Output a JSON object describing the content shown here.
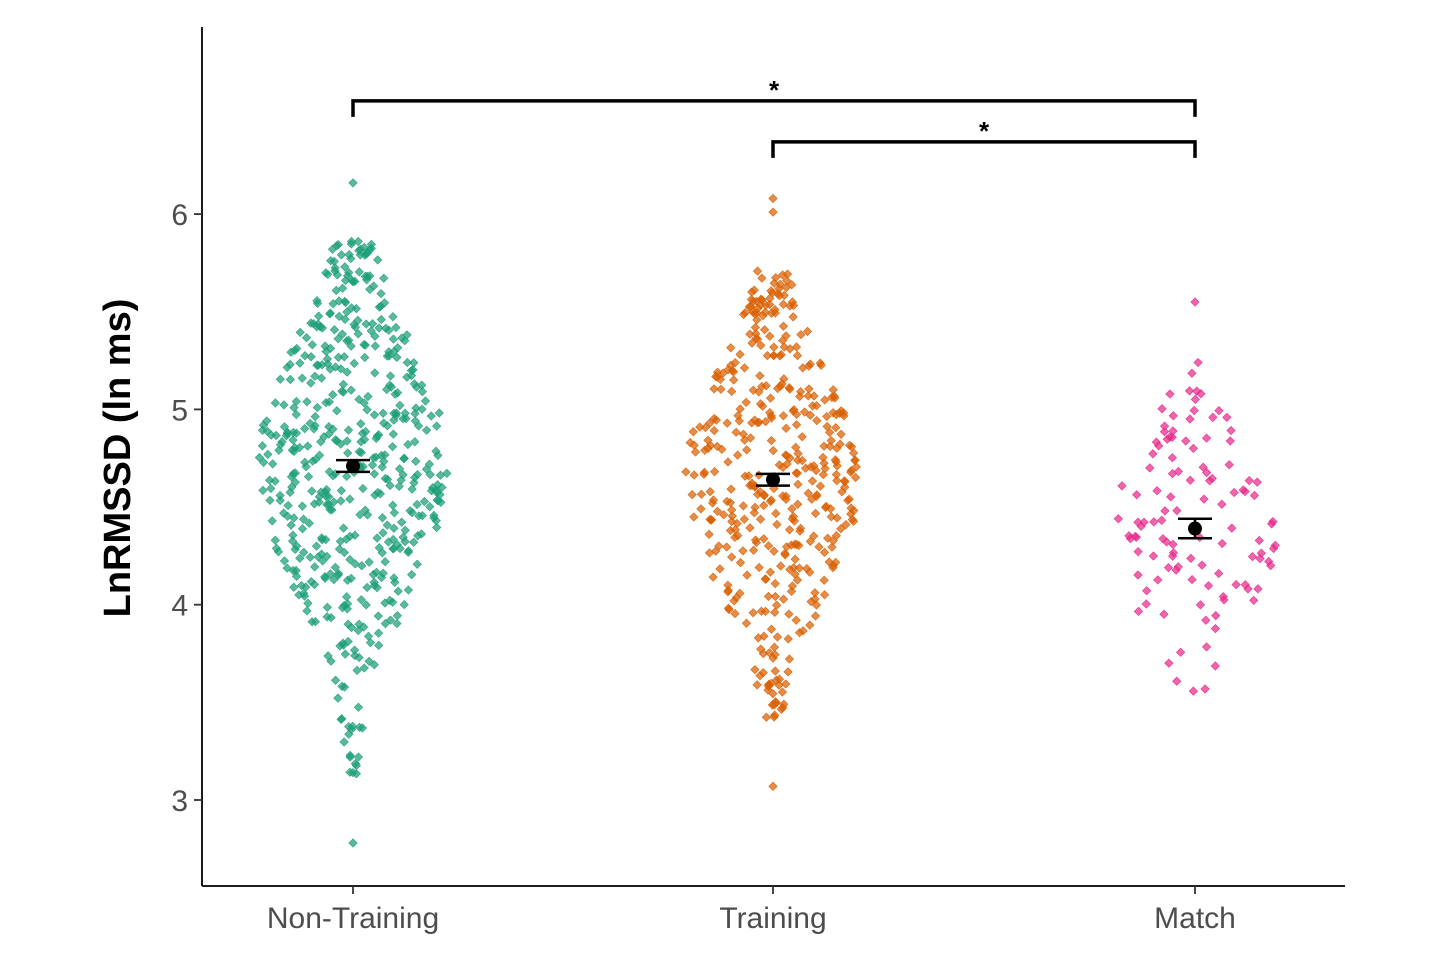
{
  "chart_data": {
    "type": "scatter",
    "subtype": "beeswarm",
    "ylabel": "LnRMSSD (ln ms)",
    "xlabel": "",
    "categories": [
      "Non-Training",
      "Training",
      "Match"
    ],
    "y_ticks": [
      "3",
      "4",
      "5",
      "6"
    ],
    "ylim": [
      2.57,
      6.97
    ],
    "grid": false,
    "legend": "none",
    "series": [
      {
        "category": "Non-Training",
        "color": "#1b9e77",
        "n_points": 520,
        "mean": 4.71,
        "error": 0.03,
        "min": 2.78,
        "max": 6.16,
        "outliers": [
          6.16,
          3.14,
          2.78
        ]
      },
      {
        "category": "Training",
        "color": "#d95f02",
        "n_points": 430,
        "mean": 4.64,
        "error": 0.03,
        "min": 3.07,
        "max": 6.08,
        "outliers": [
          6.08,
          6.01,
          3.07
        ]
      },
      {
        "category": "Match",
        "color": "#e7298a",
        "n_points": 115,
        "mean": 4.39,
        "error": 0.05,
        "min": 3.18,
        "max": 5.55,
        "outliers": [
          5.55
        ]
      }
    ],
    "significance": [
      {
        "from": "Non-Training",
        "to": "Match",
        "y": 6.58,
        "label": "*"
      },
      {
        "from": "Training",
        "to": "Match",
        "y": 6.37,
        "label": "*"
      }
    ]
  }
}
